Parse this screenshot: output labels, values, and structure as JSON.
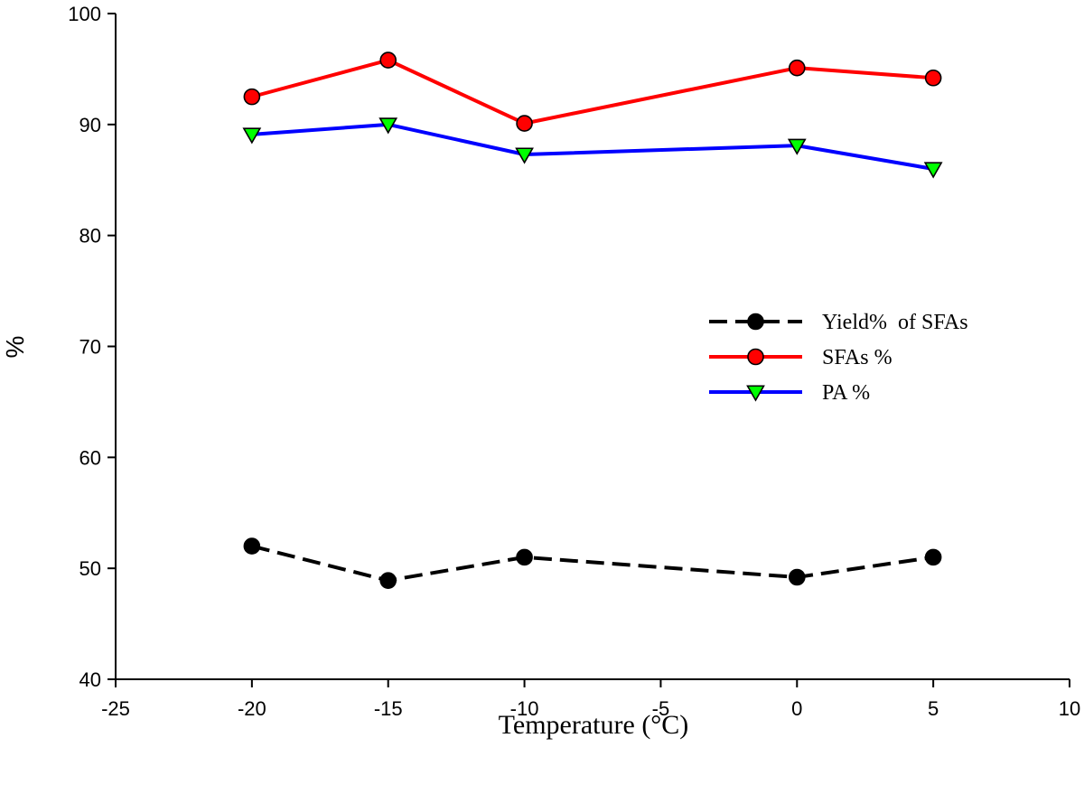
{
  "chart_data": {
    "type": "line",
    "title": "",
    "xlabel": "Temperature (°C)",
    "ylabel": "%",
    "xlim": [
      -25,
      10
    ],
    "ylim": [
      40,
      100
    ],
    "x_ticks": [
      -25,
      -20,
      -15,
      -10,
      -5,
      0,
      5,
      10
    ],
    "y_ticks": [
      40,
      50,
      60,
      70,
      80,
      90,
      100
    ],
    "x_tick_labels": [
      "-25",
      "-20",
      "-15",
      "-10",
      "-5",
      "0",
      "5",
      "10"
    ],
    "y_tick_labels": [
      "40",
      "50",
      "60",
      "70",
      "80",
      "90",
      "100"
    ],
    "grid": false,
    "legend_position": "middle-right",
    "x": [
      -20,
      -15,
      -10,
      0,
      5
    ],
    "series": [
      {
        "name": "Yield%  of SFAs",
        "values": [
          52.0,
          48.9,
          51.0,
          49.2,
          51.0
        ],
        "line_color": "#000000",
        "marker_fill": "#000000",
        "line_style": "dashed",
        "marker": "circle"
      },
      {
        "name": "SFAs %",
        "values": [
          92.5,
          95.8,
          90.1,
          95.1,
          94.2
        ],
        "line_color": "#ff0000",
        "marker_fill": "#ff0000",
        "line_style": "solid",
        "marker": "circle"
      },
      {
        "name": "PA %",
        "values": [
          89.1,
          90.0,
          87.3,
          88.1,
          86.0
        ],
        "line_color": "#0000ff",
        "marker_fill": "#00ff00",
        "line_style": "solid",
        "marker": "triangle-down"
      }
    ]
  }
}
